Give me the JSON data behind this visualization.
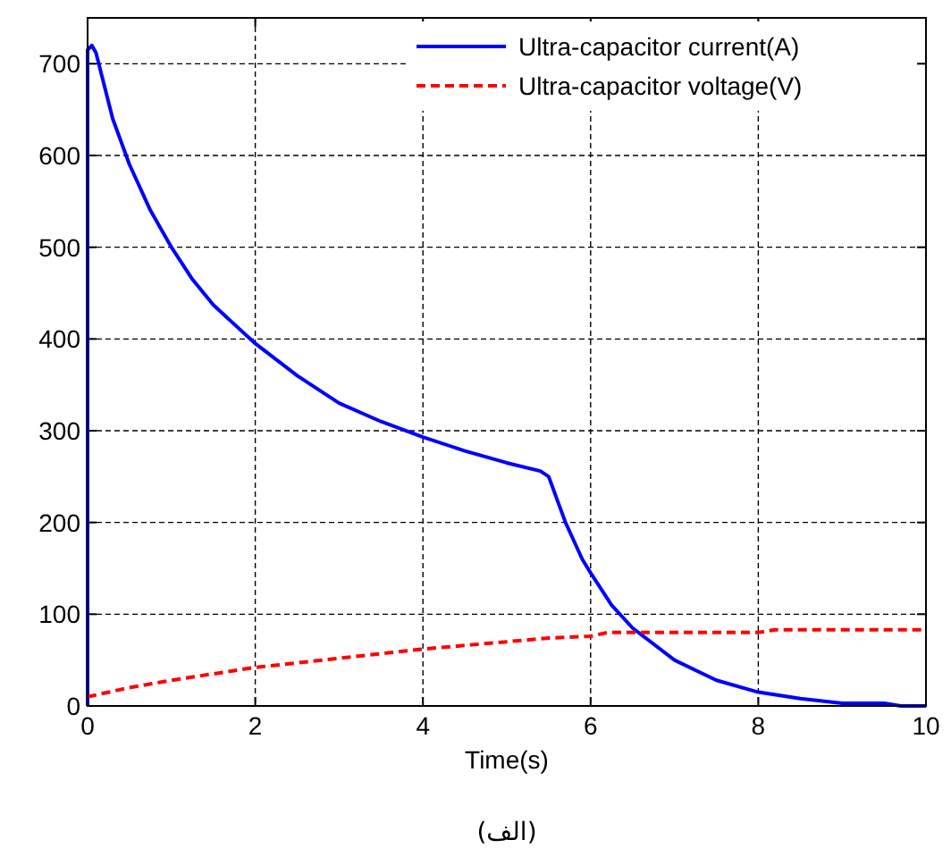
{
  "chart_data": {
    "type": "line",
    "xlabel": "Time(s)",
    "annotations": [
      "(الف)"
    ],
    "xlim": [
      0,
      10
    ],
    "ylim": [
      0,
      750
    ],
    "xticks": [
      0,
      2,
      4,
      6,
      8,
      10
    ],
    "yticks": [
      0,
      100,
      200,
      300,
      400,
      500,
      600,
      700
    ],
    "grid": true,
    "legend": "top right",
    "series": [
      {
        "name": "Ultra-capacitor current(A)",
        "color": "#0000ff",
        "line_style": "solid",
        "x": [
          0,
          0,
          0.05,
          0.1,
          0.3,
          0.5,
          0.75,
          1,
          1.25,
          1.5,
          2,
          2.5,
          3,
          3.5,
          4,
          4.5,
          5,
          5.4,
          5.5,
          5.7,
          5.9,
          6,
          6.25,
          6.5,
          7,
          7.5,
          8,
          8.5,
          9,
          9.5,
          9.7,
          10
        ],
        "values": [
          0,
          715,
          720,
          712,
          640,
          590,
          540,
          500,
          465,
          437,
          395,
          360,
          330,
          310,
          293,
          278,
          265,
          256,
          250,
          200,
          160,
          145,
          110,
          85,
          50,
          28,
          15,
          8,
          3,
          3,
          0,
          0
        ]
      },
      {
        "name": "Ultra-capacitor voltage(V)",
        "color": "#ff0000",
        "line_style": "dashed",
        "x": [
          0,
          0.5,
          1,
          2,
          3,
          4,
          5,
          5.5,
          6,
          6.2,
          8,
          8.2,
          10
        ],
        "values": [
          10,
          20,
          28,
          42,
          52,
          62,
          70,
          74,
          76,
          80,
          80,
          83,
          83
        ]
      }
    ]
  }
}
